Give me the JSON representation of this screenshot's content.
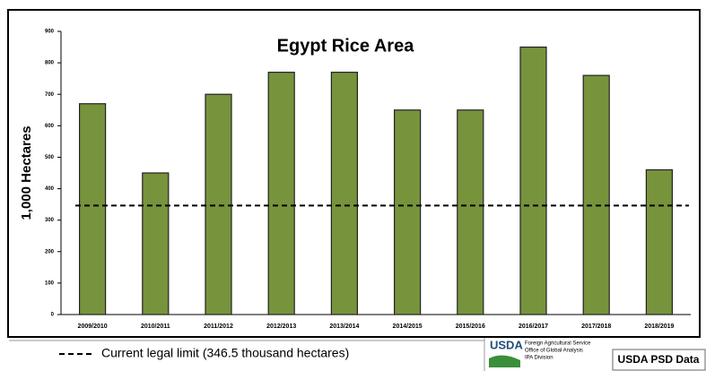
{
  "chart_data": {
    "type": "bar",
    "title": "Egypt Rice Area",
    "y_label": "1,000 Hectares",
    "categories": [
      "2009/2010",
      "2010/2011",
      "2011/2012",
      "2012/2013",
      "2013/2014",
      "2014/2015",
      "2015/2016",
      "2016/2017",
      "2017/2018",
      "2018/2019"
    ],
    "values": [
      670,
      450,
      700,
      770,
      770,
      650,
      650,
      850,
      760,
      460
    ],
    "color": "#77933c",
    "ylim": [
      0,
      900
    ],
    "yticks": [
      0,
      100,
      200,
      300,
      400,
      500,
      600,
      700,
      800,
      900
    ],
    "reference_line": {
      "value": 346.5,
      "label": "Current legal limit (346.5 thousand hectares)"
    },
    "logo": {
      "name": "USDA",
      "lines": [
        "Foreign Agricultural Service",
        "Office of Global Analysis",
        "IPA Division"
      ]
    },
    "source": "USDA PSD Data"
  }
}
